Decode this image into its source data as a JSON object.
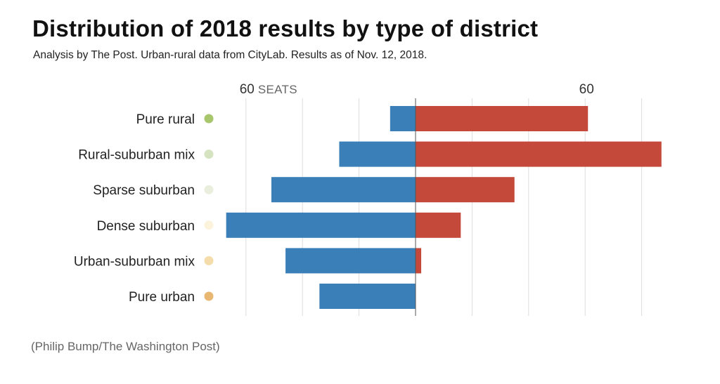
{
  "title": "Distribution of 2018 results by type of district",
  "subtitle": "Analysis by The Post. Urban-rural data from CityLab. Results as of Nov. 12, 2018.",
  "source": "(Philip Bump/The Washington Post)",
  "colors": {
    "dem": "#3a7fb8",
    "rep": "#c5493a",
    "grid": "#dddddd",
    "baseline": "#555555"
  },
  "chart_data": {
    "type": "bar",
    "orientation": "horizontal-diverging",
    "categories": [
      "Pure rural",
      "Rural-suburban mix",
      "Sparse suburban",
      "Dense suburban",
      "Urban-suburban mix",
      "Pure urban"
    ],
    "category_dot_colors": [
      "#a8c66c",
      "#d6e3c0",
      "#e9efdc",
      "#fcf3dd",
      "#f4dcab",
      "#e8b872"
    ],
    "series": [
      {
        "values": [
          9,
          27,
          51,
          67,
          46,
          34
        ],
        "color": "#3a7fb8"
      },
      {
        "values": [
          61,
          87,
          35,
          16,
          2,
          0
        ],
        "color": "#c5493a"
      }
    ],
    "xlim": [
      -67,
      87
    ],
    "axis_labels": [
      {
        "value": -60,
        "number": "60",
        "unit": "SEATS"
      },
      {
        "value": 60,
        "number": "60",
        "unit": ""
      }
    ],
    "grid_values": [
      -60,
      -40,
      -20,
      0,
      20,
      40,
      60,
      80
    ],
    "grid": true
  }
}
